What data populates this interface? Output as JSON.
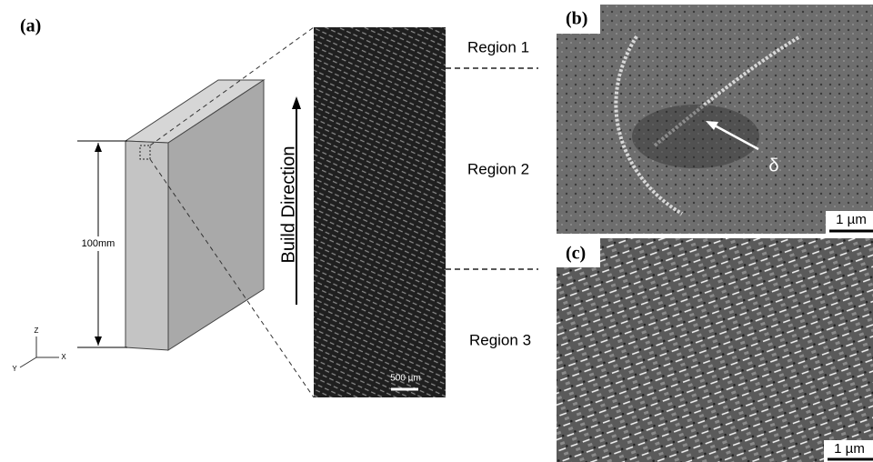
{
  "panel_a": {
    "label": "(a)",
    "dimension": "100mm",
    "axes": {
      "z": "Z",
      "y": "Y",
      "x": "X"
    },
    "build_direction": "Build Direction",
    "regions": [
      "Region 1",
      "Region 2",
      "Region 3"
    ],
    "scale_bar": "500 µm"
  },
  "panel_b": {
    "label": "(b)",
    "phase": "δ",
    "scale_bar": "1 µm"
  },
  "panel_c": {
    "label": "(c)",
    "scale_bar": "1 µm"
  }
}
